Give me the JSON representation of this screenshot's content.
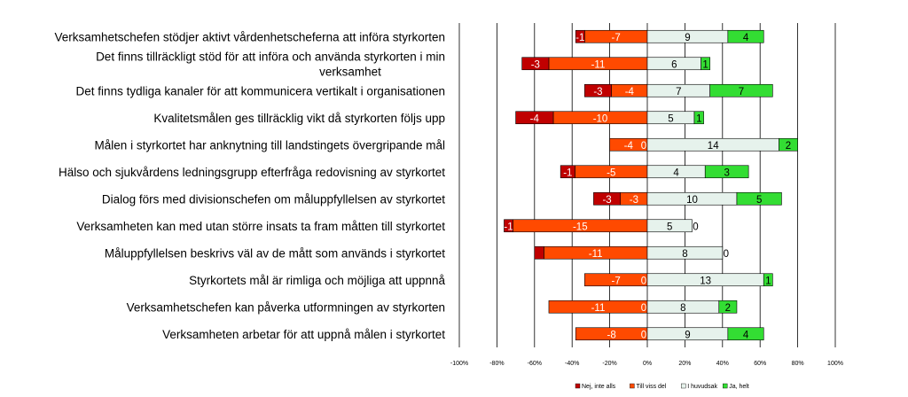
{
  "chart_data": {
    "type": "bar",
    "orientation": "horizontal",
    "stacked": "diverging",
    "categories": [
      "Verksamhetschefen stödjer aktivt vårdenhetscheferna att införa styrkorten",
      "Det finns tillräckligt stöd för att införa och använda styrkorten i min|verksamhet",
      "Det finns tydliga kanaler för att kommunicera vertikalt i organisationen",
      "Kvalitetsmålen ges tillräcklig vikt då styrkorten följs upp",
      "Målen i styrkortet har anknytning till landstingets övergripande mål",
      "Hälso och sjukvårdens ledningsgrupp efterfråga redovisning av styrkortet",
      "Dialog förs med divisionschefen om måluppfyllelsen av styrkortet",
      "Verksamheten kan med utan större insats ta fram måtten till styrkortet",
      "Måluppfyllelsen beskrivs väl av de mått som används i styrkortet",
      "Styrkortets mål är rimliga och möjliga att uppnnå",
      "Verksamhetschefen kan påverka utformningen av styrkorten",
      "Verksamheten arbetar för att uppnå målen i styrkortet"
    ],
    "series": [
      {
        "name": "Nej, inte alls",
        "color": "#c00000",
        "values": [
          -1,
          -3,
          -3,
          -4,
          0,
          -1,
          -3,
          -1,
          -1,
          0,
          0,
          0
        ]
      },
      {
        "name": "Till viss del",
        "color": "#ff4a00",
        "values": [
          -7,
          -11,
          -4,
          -10,
          -4,
          -5,
          -3,
          -15,
          -11,
          -7,
          -11,
          -8
        ]
      },
      {
        "name": "I huvudsak",
        "color": "#e6f2ec",
        "values": [
          9,
          6,
          7,
          5,
          14,
          4,
          10,
          5,
          8,
          13,
          8,
          9
        ]
      },
      {
        "name": "Ja, helt",
        "color": "#33dd33",
        "values": [
          4,
          1,
          7,
          1,
          2,
          3,
          5,
          0,
          0,
          1,
          2,
          4
        ]
      }
    ],
    "value_labels": [
      [
        "-1",
        "-7",
        "9",
        "4"
      ],
      [
        "-3",
        "-11",
        "6",
        "1"
      ],
      [
        "-3",
        "-4",
        "7",
        "7"
      ],
      [
        "-4",
        "-10",
        "5",
        "1"
      ],
      [
        "",
        "-4",
        "14",
        "2"
      ],
      [
        "-1",
        "-5",
        "4",
        "3"
      ],
      [
        "-3",
        "-3",
        "10",
        "5"
      ],
      [
        "-1",
        "-15",
        "5",
        "0"
      ],
      [
        "",
        "-11",
        "8",
        "0"
      ],
      [
        "",
        "-7",
        "13",
        "1"
      ],
      [
        "",
        "-11",
        "8",
        "2"
      ],
      [
        "",
        "-8",
        "9",
        "4"
      ]
    ],
    "zero_labels_negative": [
      "",
      "",
      "",
      "",
      "0",
      "",
      "",
      "",
      "",
      "0",
      "0",
      "0"
    ],
    "x_percent_range": [
      -100,
      100
    ],
    "x_tick_labels": [
      "-100%",
      "-80%",
      "-60%",
      "-40%",
      "-20%",
      "0%",
      "20%",
      "40%",
      "60%",
      "80%",
      "100%"
    ],
    "grid": true,
    "legend_position": "bottom"
  }
}
